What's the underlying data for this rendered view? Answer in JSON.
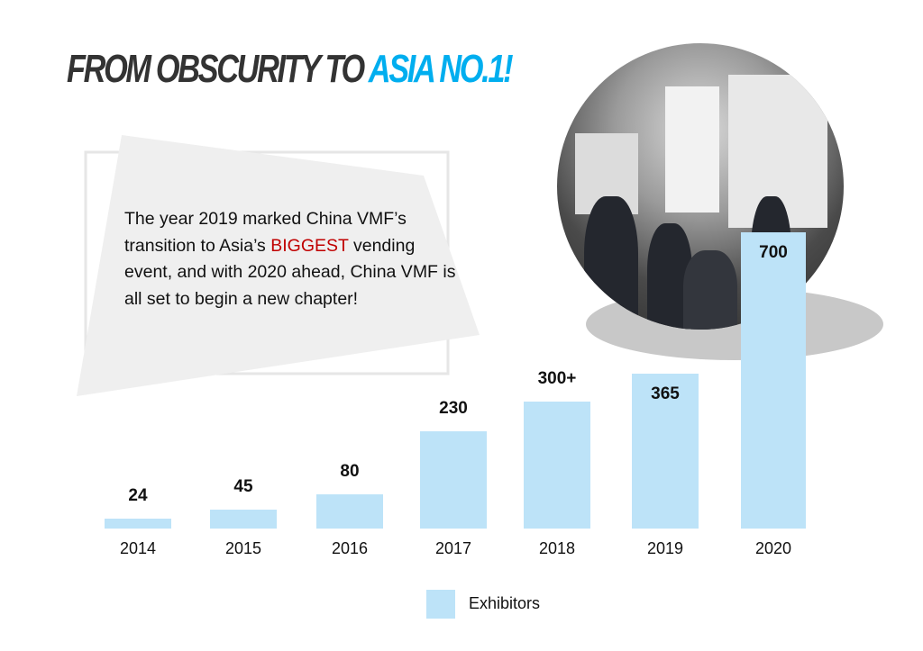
{
  "title": {
    "part1": "FROM OBSCURITY TO ",
    "part2": "ASIA NO.1!"
  },
  "description": {
    "before": "The year 2019 marked China VMF’s transition to Asia’s ",
    "highlight": "BIGGEST",
    "after": " vending event, and with 2020 ahead, China VMF is all set to begin a new chapter!"
  },
  "colors": {
    "title_dark": "#333333",
    "title_accent": "#00aeef",
    "highlight": "#c00000",
    "bar": "#bde3f8"
  },
  "chart_data": {
    "type": "bar",
    "categories": [
      "2014",
      "2015",
      "2016",
      "2017",
      "2018",
      "2019",
      "2020"
    ],
    "series": [
      {
        "name": "Exhibitors",
        "values": [
          24,
          45,
          80,
          230,
          300,
          365,
          700
        ]
      }
    ],
    "data_labels": [
      "24",
      "45",
      "80",
      "230",
      "300+",
      "365",
      "700"
    ],
    "legend": "bottom",
    "grid": false
  }
}
